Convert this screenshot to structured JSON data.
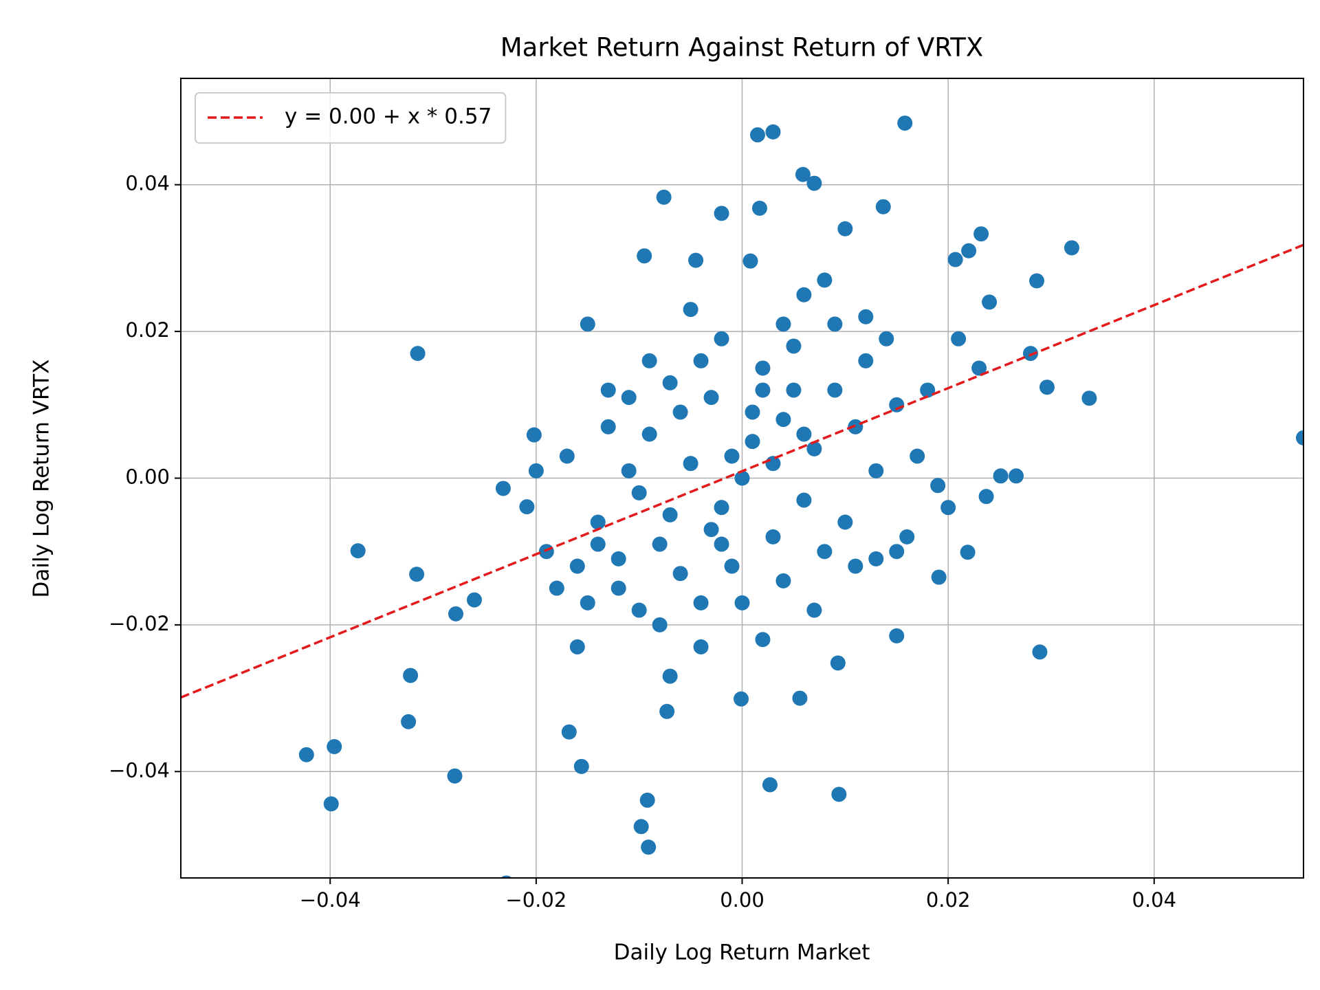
{
  "chart_data": {
    "type": "scatter",
    "title": "Market Return Against Return of VRTX",
    "x_label": "Daily Log Return Market",
    "y_label": "Daily Log Return VRTX",
    "xlim": [
      -0.0545,
      0.0545
    ],
    "ylim": [
      -0.0545,
      0.0545
    ],
    "xticks": [
      {
        "value": -0.04,
        "label": "−0.04"
      },
      {
        "value": -0.02,
        "label": "−0.02"
      },
      {
        "value": 0,
        "label": "0.00"
      },
      0.02,
      0.04
    ],
    "yticks": [
      {
        "value": -0.04,
        "label": "−0.04"
      },
      {
        "value": -0.02,
        "label": "−0.02"
      },
      {
        "value": 0,
        "label": "0.00"
      },
      0.02,
      0.04
    ],
    "grid": true,
    "legend": "upper left",
    "series": [
      {
        "kind": "points",
        "color": "#1f77b4",
        "x": [
          0.0545,
          0.0158,
          0.0015,
          0.003,
          0.0059,
          0.007,
          -0.0076,
          0.0137,
          0.0017,
          -0.002,
          0.0232,
          0.032,
          0.022,
          0.0207,
          -0.0095,
          0.0008,
          -0.0045,
          -0.0315,
          -0.015,
          0.0337,
          0.0296,
          0.0286,
          0.028,
          0.0266,
          0.0251,
          0.0289,
          0.015,
          0.0027,
          0.0094,
          -0.0092,
          -0.0098,
          -0.0091,
          -0.0229,
          -0.0423,
          -0.0396,
          -0.0399,
          -0.0279,
          -0.0324,
          -0.0322,
          -0.0373,
          -0.0316,
          -0.0278,
          -0.026,
          -0.0232,
          -0.0209,
          -0.0202,
          -0.0156,
          -0.0168,
          -0.0001,
          0.0056,
          -0.0073,
          0.0093,
          0.0191,
          0.0219,
          0.0237,
          0.001,
          -0.002,
          0.004,
          -0.005,
          0.006,
          -0.008,
          0.009,
          0.002,
          -0.003,
          0.007,
          -0.01,
          0.011,
          -0.006,
          0.003,
          -0.001,
          0.013,
          -0.012,
          0.005,
          -0.004,
          0.008,
          -0.007,
          0.0,
          0.015,
          -0.014,
          0.01,
          -0.009,
          0.012,
          -0.011,
          0.017,
          -0.016,
          0.004,
          -0.002,
          0.006,
          -0.005,
          0.002,
          -0.008,
          0.014,
          -0.013,
          0.019,
          -0.017,
          0.007,
          -0.01,
          0.016,
          -0.015,
          0.001,
          -0.001,
          0.003,
          -0.003,
          0.005,
          -0.006,
          0.009,
          -0.004,
          0.011,
          -0.012,
          0.018,
          -0.018,
          0.021,
          -0.02,
          0.023,
          -0.013,
          0.008,
          -0.007,
          0.01,
          -0.004,
          0.013,
          -0.016,
          0.024,
          -0.009,
          0.02,
          -0.019,
          0.0,
          0.002,
          -0.002,
          0.006,
          -0.007,
          0.012,
          -0.011,
          0.015,
          -0.014,
          0.004
        ],
        "values": [
          0.0055,
          0.0484,
          0.0468,
          0.0472,
          0.0414,
          0.0402,
          0.0383,
          0.037,
          0.0368,
          0.0361,
          0.0333,
          0.0314,
          0.031,
          0.0298,
          0.0303,
          0.0296,
          0.0297,
          0.017,
          0.021,
          0.0109,
          0.0124,
          0.0269,
          0.017,
          0.0003,
          0.0003,
          -0.0237,
          -0.0215,
          -0.0418,
          -0.0431,
          -0.0439,
          -0.0475,
          -0.0503,
          -0.0552,
          -0.0377,
          -0.0366,
          -0.0444,
          -0.0406,
          -0.0332,
          -0.0269,
          -0.0099,
          -0.0131,
          -0.0185,
          -0.0166,
          -0.0014,
          -0.0039,
          0.0059,
          -0.0393,
          -0.0346,
          -0.0301,
          -0.03,
          -0.0318,
          -0.0252,
          -0.0135,
          -0.0101,
          -0.0025,
          0.005,
          -0.004,
          0.008,
          0.002,
          -0.003,
          -0.009,
          0.012,
          0.015,
          0.011,
          0.004,
          -0.002,
          0.007,
          0.009,
          -0.008,
          -0.012,
          0.001,
          -0.011,
          0.018,
          -0.017,
          -0.01,
          0.013,
          0.0,
          0.01,
          -0.006,
          -0.006,
          0.006,
          0.016,
          0.001,
          0.003,
          -0.012,
          0.021,
          0.019,
          0.025,
          0.023,
          -0.022,
          -0.02,
          0.019,
          0.007,
          -0.001,
          0.003,
          -0.018,
          -0.018,
          -0.008,
          -0.017,
          0.009,
          0.003,
          0.002,
          -0.007,
          0.012,
          -0.013,
          0.021,
          0.016,
          -0.012,
          -0.015,
          0.012,
          -0.015,
          0.019,
          0.001,
          0.015,
          0.012,
          0.027,
          -0.027,
          0.034,
          -0.023,
          -0.011,
          -0.023,
          0.024,
          0.016,
          -0.004,
          -0.01,
          -0.017,
          0.012,
          -0.009,
          0.006,
          -0.005,
          0.022,
          0.011,
          -0.01,
          -0.009,
          -0.014
        ]
      },
      {
        "kind": "line",
        "name": "y = 0.00 + x * 0.57",
        "color": "#e31a1c",
        "x": [
          -0.0545,
          0.0545
        ],
        "values": [
          -0.0299,
          0.0318
        ]
      }
    ]
  }
}
